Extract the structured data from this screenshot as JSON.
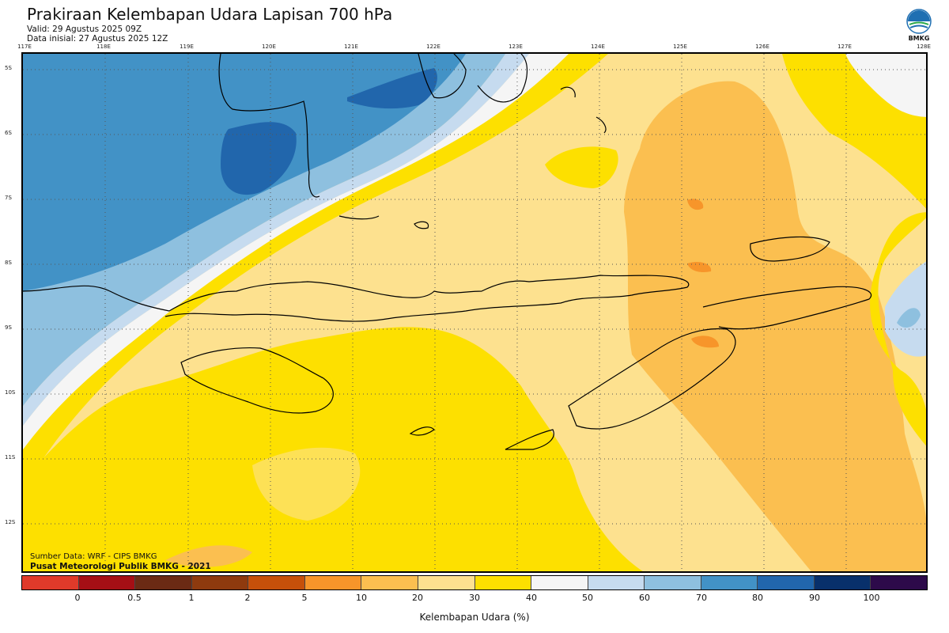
{
  "header": {
    "title": "Prakiraan Kelembapan Udara Lapisan 700 hPa",
    "valid": "Valid: 29 Agustus 2025 09Z",
    "init": "Data inisial: 27 Agustus 2025 12Z"
  },
  "logo": {
    "text": "BMKG",
    "icon": "bmkg-logo"
  },
  "longitude_labels": [
    "117E",
    "118E",
    "119E",
    "120E",
    "121E",
    "122E",
    "123E",
    "124E",
    "125E",
    "126E",
    "127E",
    "128E"
  ],
  "latitude_labels": [
    "5S",
    "6S",
    "7S",
    "8S",
    "9S",
    "10S",
    "11S",
    "12S"
  ],
  "credits": {
    "source": "Sumber Data: WRF - CIPS BMKG",
    "publisher": "Pusat Meteorologi Publik BMKG - 2021"
  },
  "colorbar": {
    "label": "Kelembapan Udara (%)",
    "ticks": [
      "0",
      "0.5",
      "1",
      "2",
      "5",
      "10",
      "20",
      "30",
      "40",
      "50",
      "60",
      "70",
      "80",
      "90",
      "100"
    ],
    "colors": [
      "#e03a2a",
      "#a50f15",
      "#6b2a14",
      "#8e3a0e",
      "#c6500a",
      "#f7952a",
      "#fbbf50",
      "#fde18f",
      "#fde000",
      "#f5f5f5",
      "#c6dbef",
      "#8ec0df",
      "#4292c6",
      "#2166ac",
      "#08306b",
      "#2d0a4a"
    ]
  }
}
